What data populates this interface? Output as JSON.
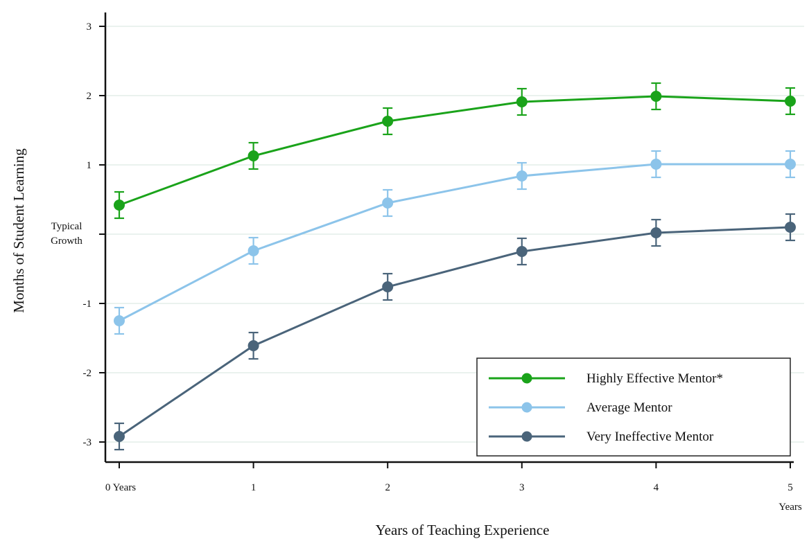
{
  "chart_data": {
    "type": "line",
    "xlabel": "Years of Teaching Experience",
    "ylabel": "Months of Student Learning",
    "x": [
      0,
      1,
      2,
      3,
      4,
      5
    ],
    "x_tick_labels": [
      "0 Years",
      "1",
      "2",
      "3",
      "4",
      "5"
    ],
    "x_end_label": "Years",
    "xlim": [
      0,
      5
    ],
    "ylim": [
      -3.3,
      3.1
    ],
    "y_ticks": [
      3,
      2,
      1,
      -1,
      -2,
      -3
    ],
    "y_tick_labels": [
      "3",
      "2",
      "1",
      "-1",
      "-2",
      "-3"
    ],
    "zero_label": [
      "Typical",
      "Growth"
    ],
    "grid": "horizontal",
    "legend_position": "bottom-right",
    "series": [
      {
        "name": "Highly Effective Mentor*",
        "color": "#1aa31a",
        "values": [
          0.42,
          1.13,
          1.63,
          1.91,
          1.99,
          1.92
        ],
        "error": [
          0.19,
          0.19,
          0.19,
          0.19,
          0.19,
          0.19
        ]
      },
      {
        "name": "Average Mentor",
        "color": "#8cc4ea",
        "values": [
          -1.25,
          -0.24,
          0.45,
          0.84,
          1.01,
          1.01
        ],
        "error": [
          0.19,
          0.19,
          0.19,
          0.19,
          0.19,
          0.19
        ]
      },
      {
        "name": "Very Ineffective Mentor",
        "color": "#4a647a",
        "values": [
          -2.92,
          -1.61,
          -0.76,
          -0.25,
          0.02,
          0.1
        ],
        "error": [
          0.19,
          0.19,
          0.19,
          0.19,
          0.19,
          0.19
        ]
      }
    ]
  }
}
